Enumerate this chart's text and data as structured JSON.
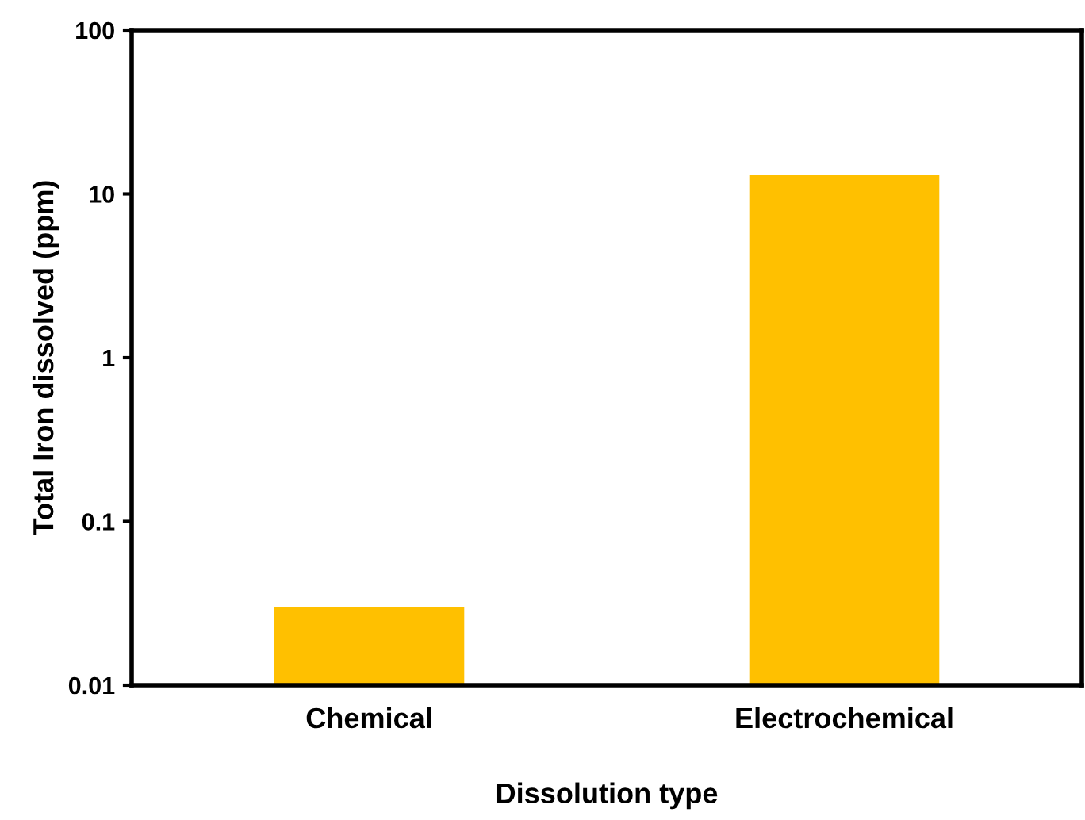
{
  "chart_data": {
    "type": "bar",
    "xlabel": "Dissolution type",
    "ylabel": "Total Iron dissolved (ppm)",
    "categories": [
      "Chemical",
      "Electrochemical"
    ],
    "values": [
      0.03,
      13
    ],
    "color": "#ffc000",
    "log": true,
    "ylim": [
      0.01,
      100
    ],
    "yticks": [
      0.01,
      0.1,
      1,
      10,
      100
    ],
    "grid": false,
    "legend": false
  }
}
